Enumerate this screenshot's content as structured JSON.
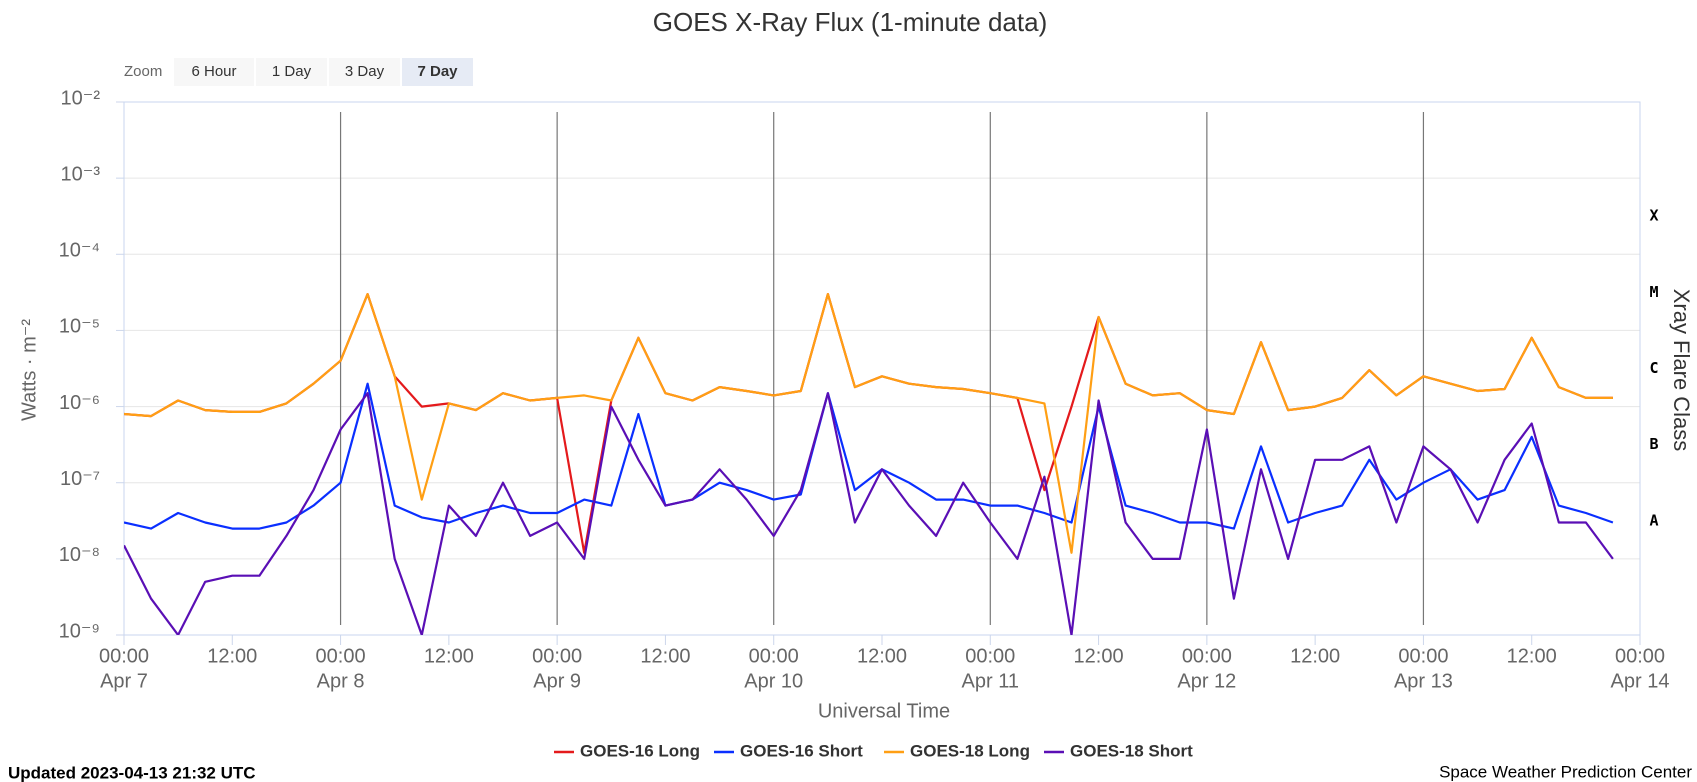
{
  "chart_data": {
    "type": "line",
    "title": "GOES X-Ray Flux (1-minute data)",
    "zoom": {
      "label": "Zoom",
      "buttons": [
        "6 Hour",
        "1 Day",
        "3 Day",
        "7 Day"
      ],
      "selected": "7 Day"
    },
    "x_label": "Universal Time",
    "y_label": "Watts · m⁻²",
    "y2_label": "Xray Flare Class",
    "flare_classes": [
      "A",
      "B",
      "C",
      "M",
      "X"
    ],
    "log_scale": true,
    "grid": true,
    "xlim": [
      0,
      168
    ],
    "xticks": [
      {
        "value": 0,
        "label": "00:00",
        "sublabel": "Apr 7"
      },
      {
        "value": 12,
        "label": "12:00"
      },
      {
        "value": 24,
        "label": "00:00",
        "sublabel": "Apr 8"
      },
      {
        "value": 36,
        "label": "12:00"
      },
      {
        "value": 48,
        "label": "00:00",
        "sublabel": "Apr 9"
      },
      {
        "value": 60,
        "label": "12:00"
      },
      {
        "value": 72,
        "label": "00:00",
        "sublabel": "Apr 10"
      },
      {
        "value": 84,
        "label": "12:00"
      },
      {
        "value": 96,
        "label": "00:00",
        "sublabel": "Apr 11"
      },
      {
        "value": 108,
        "label": "12:00"
      },
      {
        "value": 120,
        "label": "00:00",
        "sublabel": "Apr 12"
      },
      {
        "value": 132,
        "label": "12:00"
      },
      {
        "value": 144,
        "label": "00:00",
        "sublabel": "Apr 13"
      },
      {
        "value": 156,
        "label": "12:00"
      },
      {
        "value": 168,
        "label": "00:00",
        "sublabel": "Apr 14"
      }
    ],
    "ylim": [
      1e-09,
      0.01
    ],
    "yticks": [
      {
        "value": 1e-09,
        "label": "10⁻⁹"
      },
      {
        "value": 1e-08,
        "label": "10⁻⁸"
      },
      {
        "value": 1e-07,
        "label": "10⁻⁷"
      },
      {
        "value": 1e-06,
        "label": "10⁻⁶"
      },
      {
        "value": 1e-05,
        "label": "10⁻⁵"
      },
      {
        "value": 0.0001,
        "label": "10⁻⁴"
      },
      {
        "value": 0.001,
        "label": "10⁻³"
      },
      {
        "value": 0.01,
        "label": "10⁻²"
      }
    ],
    "x": [
      0,
      3,
      6,
      9,
      12,
      15,
      18,
      21,
      24,
      27,
      30,
      33,
      36,
      39,
      42,
      45,
      48,
      51,
      54,
      57,
      60,
      63,
      66,
      69,
      72,
      75,
      78,
      81,
      84,
      87,
      90,
      93,
      96,
      99,
      102,
      105,
      108,
      111,
      114,
      117,
      120,
      123,
      126,
      129,
      132,
      135,
      138,
      141,
      144,
      147,
      150,
      153,
      156,
      159,
      162,
      165
    ],
    "series": [
      {
        "name": "GOES-16 Long",
        "color": "#e41a1c",
        "values": [
          8e-07,
          7.5e-07,
          1.2e-06,
          9e-07,
          8.5e-07,
          8.5e-07,
          1.1e-06,
          2e-06,
          4e-06,
          3e-05,
          2.5e-06,
          1e-06,
          1.1e-06,
          9e-07,
          1.5e-06,
          1.2e-06,
          1.3e-06,
          1.2e-08,
          1.2e-06,
          8e-06,
          1.5e-06,
          1.2e-06,
          1.8e-06,
          1.6e-06,
          1.4e-06,
          1.6e-06,
          3e-05,
          1.8e-06,
          2.5e-06,
          2e-06,
          1.8e-06,
          1.7e-06,
          1.5e-06,
          1.3e-06,
          8e-08,
          1e-06,
          1.5e-05,
          2e-06,
          1.4e-06,
          1.5e-06,
          9e-07,
          8e-07,
          7e-06,
          9e-07,
          1e-06,
          1.3e-06,
          3e-06,
          1.4e-06,
          2.5e-06,
          2e-06,
          1.6e-06,
          1.7e-06,
          8e-06,
          1.8e-06,
          1.3e-06,
          1.3e-06
        ]
      },
      {
        "name": "GOES-16 Short",
        "color": "#0a2fff",
        "values": [
          3e-08,
          2.5e-08,
          4e-08,
          3e-08,
          2.5e-08,
          2.5e-08,
          3e-08,
          5e-08,
          1e-07,
          2e-06,
          5e-08,
          3.5e-08,
          3e-08,
          4e-08,
          5e-08,
          4e-08,
          4e-08,
          6e-08,
          5e-08,
          8e-07,
          5e-08,
          6e-08,
          1e-07,
          8e-08,
          6e-08,
          7e-08,
          1.5e-06,
          8e-08,
          1.5e-07,
          1e-07,
          6e-08,
          6e-08,
          5e-08,
          5e-08,
          4e-08,
          3e-08,
          1e-06,
          5e-08,
          4e-08,
          3e-08,
          3e-08,
          2.5e-08,
          3e-07,
          3e-08,
          4e-08,
          5e-08,
          2e-07,
          6e-08,
          1e-07,
          1.5e-07,
          6e-08,
          8e-08,
          4e-07,
          5e-08,
          4e-08,
          3e-08
        ]
      },
      {
        "name": "GOES-18 Long",
        "color": "#ff9f14",
        "values": [
          8e-07,
          7.5e-07,
          1.2e-06,
          9e-07,
          8.5e-07,
          8.5e-07,
          1.1e-06,
          2e-06,
          4e-06,
          3e-05,
          2.5e-06,
          6e-08,
          1.1e-06,
          9e-07,
          1.5e-06,
          1.2e-06,
          1.3e-06,
          1.4e-06,
          1.2e-06,
          8e-06,
          1.5e-06,
          1.2e-06,
          1.8e-06,
          1.6e-06,
          1.4e-06,
          1.6e-06,
          3e-05,
          1.8e-06,
          2.5e-06,
          2e-06,
          1.8e-06,
          1.7e-06,
          1.5e-06,
          1.3e-06,
          1.1e-06,
          1.2e-08,
          1.5e-05,
          2e-06,
          1.4e-06,
          1.5e-06,
          9e-07,
          8e-07,
          7e-06,
          9e-07,
          1e-06,
          1.3e-06,
          3e-06,
          1.4e-06,
          2.5e-06,
          2e-06,
          1.6e-06,
          1.7e-06,
          8e-06,
          1.8e-06,
          1.3e-06,
          1.3e-06
        ]
      },
      {
        "name": "GOES-18 Short",
        "color": "#5a0fb5",
        "values": [
          1.5e-08,
          3e-09,
          1e-09,
          5e-09,
          6e-09,
          6e-09,
          2e-08,
          8e-08,
          5e-07,
          1.5e-06,
          1e-08,
          1e-09,
          5e-08,
          2e-08,
          1e-07,
          2e-08,
          3e-08,
          1e-08,
          1e-06,
          2e-07,
          5e-08,
          6e-08,
          1.5e-07,
          6e-08,
          2e-08,
          8e-08,
          1.5e-06,
          3e-08,
          1.5e-07,
          5e-08,
          2e-08,
          1e-07,
          3e-08,
          1e-08,
          1.2e-07,
          1e-09,
          1.2e-06,
          3e-08,
          1e-08,
          1e-08,
          5e-07,
          3e-09,
          1.5e-07,
          1e-08,
          2e-07,
          2e-07,
          3e-07,
          3e-08,
          3e-07,
          1.5e-07,
          3e-08,
          2e-07,
          6e-07,
          3e-08,
          3e-08,
          1e-08
        ]
      }
    ],
    "footer_left": "Updated 2023-04-13 21:32 UTC",
    "footer_right": "Space Weather Prediction Center"
  }
}
